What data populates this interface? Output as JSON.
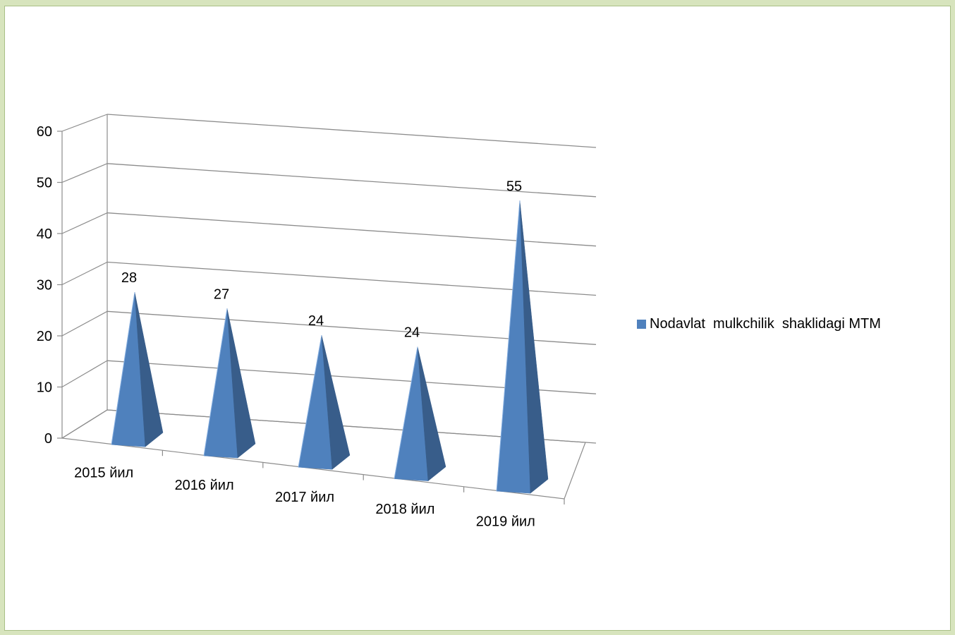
{
  "chart_data": {
    "type": "bar",
    "style": "3d-pyramid",
    "title": "",
    "xlabel": "",
    "ylabel": "",
    "categories": [
      "2015 йил",
      "2016 йил",
      "2017 йил",
      "2018 йил",
      "2019 йил"
    ],
    "series": [
      {
        "name": "Nodavlat  mulkchilik  shaklidagi MTM",
        "values": [
          28,
          27,
          24,
          24,
          55
        ]
      }
    ],
    "ylim": [
      0,
      60
    ],
    "yticks": [
      0,
      10,
      20,
      30,
      40,
      50,
      60
    ],
    "grid": true,
    "legend_position": "right",
    "colors": {
      "bar_front": "#4f81bd",
      "bar_side": "#385d8a",
      "bar_edge": "#8cb3e3",
      "gridline": "#8c8c8c",
      "background": "#d7e4bd"
    }
  }
}
